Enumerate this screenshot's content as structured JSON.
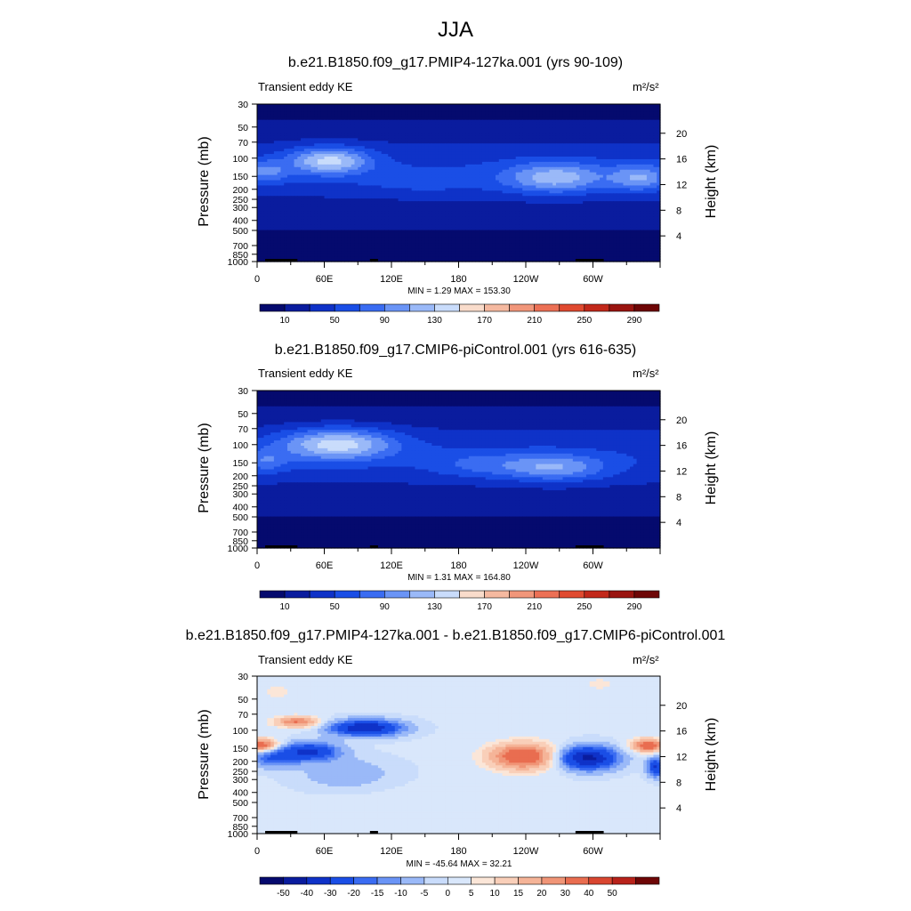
{
  "figure_title": "JJA",
  "panels": [
    {
      "title": "b.e21.B1850.f09_g17.PMIP4-127ka.001 (yrs 90-109)",
      "field_label": "Transient eddy KE",
      "units": "m²/s²",
      "ylabel_left": "Pressure (mb)",
      "ylabel_right": "Height (km)",
      "minmax": "MIN =   1.29  MAX = 153.30",
      "colorbar_labels": [
        "10",
        "50",
        "90",
        "130",
        "170",
        "210",
        "250",
        "290"
      ]
    },
    {
      "title": "b.e21.B1850.f09_g17.CMIP6-piControl.001 (yrs 616-635)",
      "field_label": "Transient eddy KE",
      "units": "m²/s²",
      "ylabel_left": "Pressure (mb)",
      "ylabel_right": "Height (km)",
      "minmax": "MIN =   1.31  MAX = 164.80",
      "colorbar_labels": [
        "10",
        "50",
        "90",
        "130",
        "170",
        "210",
        "250",
        "290"
      ]
    },
    {
      "title": "b.e21.B1850.f09_g17.PMIP4-127ka.001 - b.e21.B1850.f09_g17.CMIP6-piControl.001",
      "field_label": "Transient eddy KE",
      "units": "m²/s²",
      "ylabel_left": "Pressure (mb)",
      "ylabel_right": "Height (km)",
      "minmax": "MIN = -45.64  MAX =  32.21",
      "colorbar_labels": [
        "-50",
        "-40",
        "-30",
        "-20",
        "-15",
        "-10",
        "-5",
        "0",
        "5",
        "10",
        "15",
        "20",
        "30",
        "40",
        "50"
      ]
    }
  ],
  "chart_data": {
    "type": "heatmap",
    "x_ticks": [
      "0",
      "60E",
      "120E",
      "180",
      "120W",
      "60W"
    ],
    "x_tick_values": [
      0,
      60,
      120,
      180,
      240,
      300
    ],
    "xlim": [
      0,
      360
    ],
    "pressure_ticks": [
      "30",
      "50",
      "70",
      "100",
      "150",
      "200",
      "250",
      "300",
      "400",
      "500",
      "700",
      "850",
      "1000"
    ],
    "pressure_values": [
      30,
      50,
      70,
      100,
      150,
      200,
      250,
      300,
      400,
      500,
      700,
      850,
      1000
    ],
    "ylim_mb": [
      1000,
      30
    ],
    "height_ticks": [
      "4",
      "8",
      "12",
      "16",
      "20"
    ],
    "height_values": [
      4,
      8,
      12,
      16,
      20
    ],
    "colors": {
      "abs": [
        "#050a6e",
        "#0a1c9e",
        "#0f32c8",
        "#1a4ee6",
        "#3a6cf2",
        "#6a94f6",
        "#9ab9f8",
        "#c9dcfb",
        "#f9dccb",
        "#f5b9a0",
        "#f1967a",
        "#ec7055",
        "#e04a30",
        "#c2281a",
        "#9a1410",
        "#6e0606"
      ],
      "diff": [
        "#050a6e",
        "#0a1c9e",
        "#0f32c8",
        "#1a4ee6",
        "#3a6cf2",
        "#6a94f6",
        "#9ab9f8",
        "#c9dcfb",
        "#d9e7fb",
        "#fbe6d8",
        "#f9cfb9",
        "#f5b498",
        "#f09577",
        "#e96d50",
        "#d94630",
        "#b8221a",
        "#6e0606"
      ]
    }
  }
}
